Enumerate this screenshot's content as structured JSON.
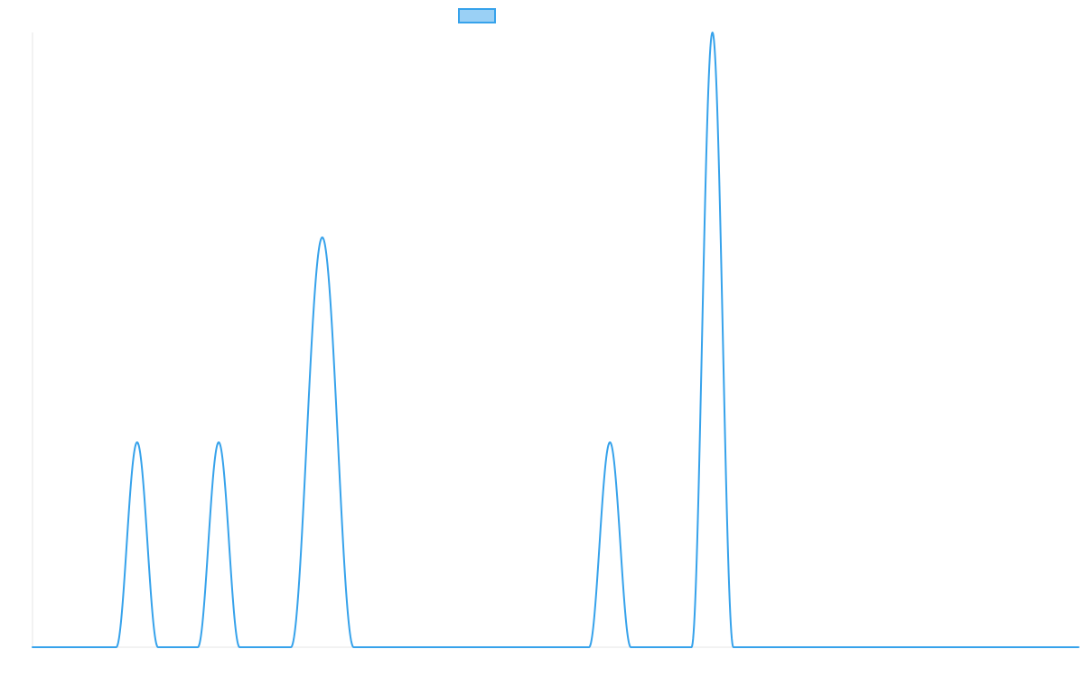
{
  "chart_data": {
    "type": "line",
    "title": "",
    "xlabel": "",
    "ylabel": "",
    "grid": false,
    "legend": "top-center",
    "xlim": [
      0,
      100
    ],
    "ylim": [
      0,
      3
    ],
    "x": [
      0,
      100
    ],
    "series": [
      {
        "name": "",
        "line_color": "#36a2eb",
        "fill_color": "#9ad0f5",
        "points": [
          [
            0,
            0
          ],
          [
            100,
            0
          ]
        ],
        "peaks": [
          {
            "center": 10.0,
            "height": 1.0,
            "half_width": 2.0
          },
          {
            "center": 17.8,
            "height": 1.0,
            "half_width": 2.0
          },
          {
            "center": 27.7,
            "height": 2.0,
            "half_width": 3.0
          },
          {
            "center": 55.2,
            "height": 1.0,
            "half_width": 2.0
          },
          {
            "center": 65.0,
            "height": 3.0,
            "half_width": 2.0
          }
        ]
      }
    ]
  }
}
